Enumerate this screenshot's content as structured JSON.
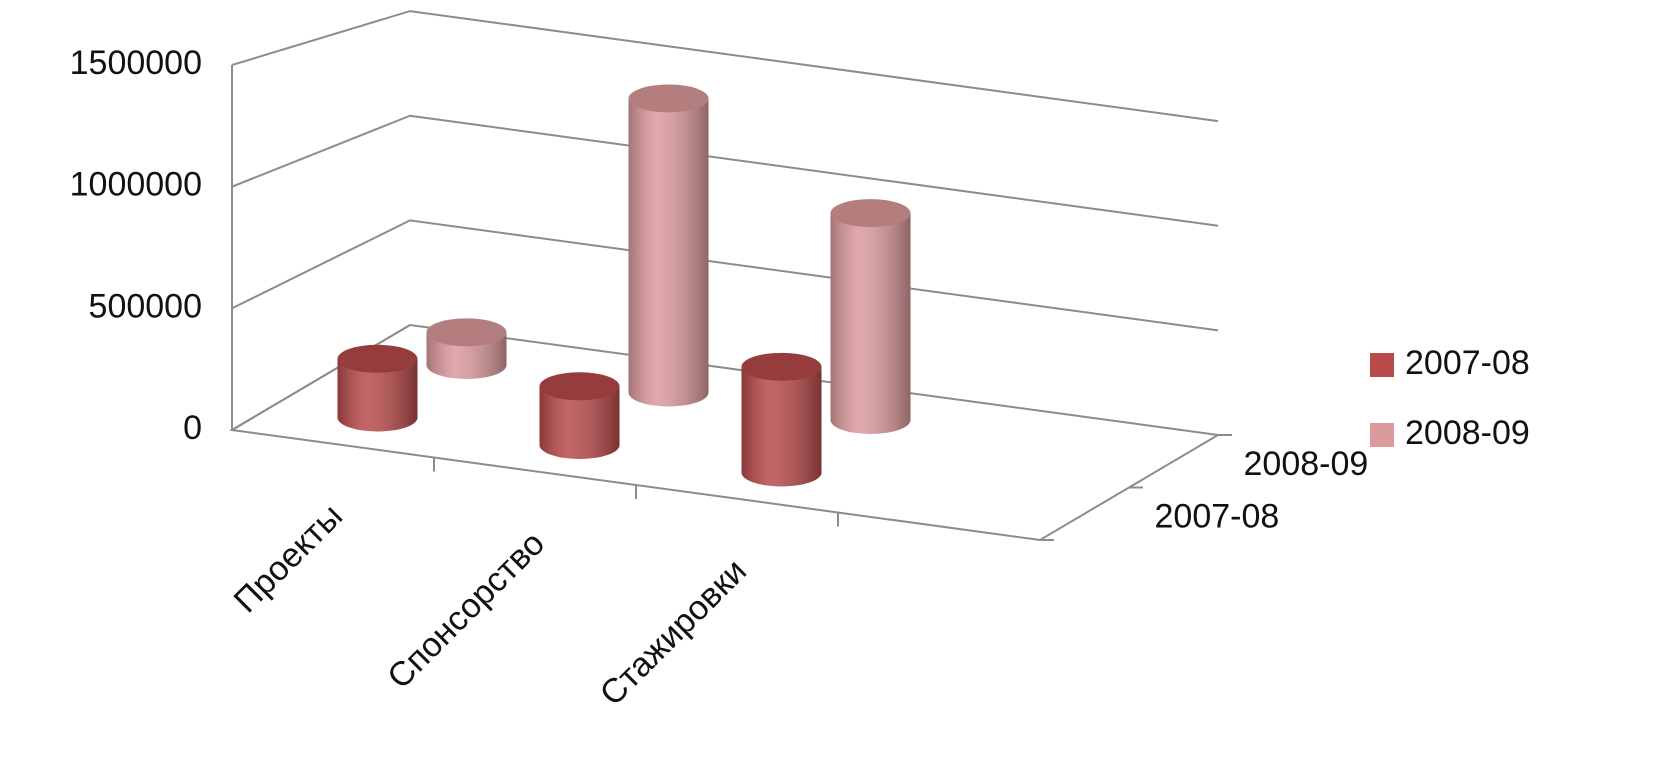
{
  "chart_data": {
    "type": "bar3d",
    "categories": [
      "Проекты",
      "Спонсорство",
      "Стажировки",
      null
    ],
    "series": [
      {
        "name": "2007-08",
        "color": "#b84a4a",
        "values": [
          250000,
          250000,
          450000,
          null
        ]
      },
      {
        "name": "2008-09",
        "color": "#dc9a9c",
        "values": [
          150000,
          1350000,
          950000,
          null
        ]
      }
    ],
    "ylim": [
      0,
      1500000
    ],
    "yticks": [
      0,
      500000,
      1000000,
      1500000
    ],
    "grid": true,
    "legend": "right"
  }
}
